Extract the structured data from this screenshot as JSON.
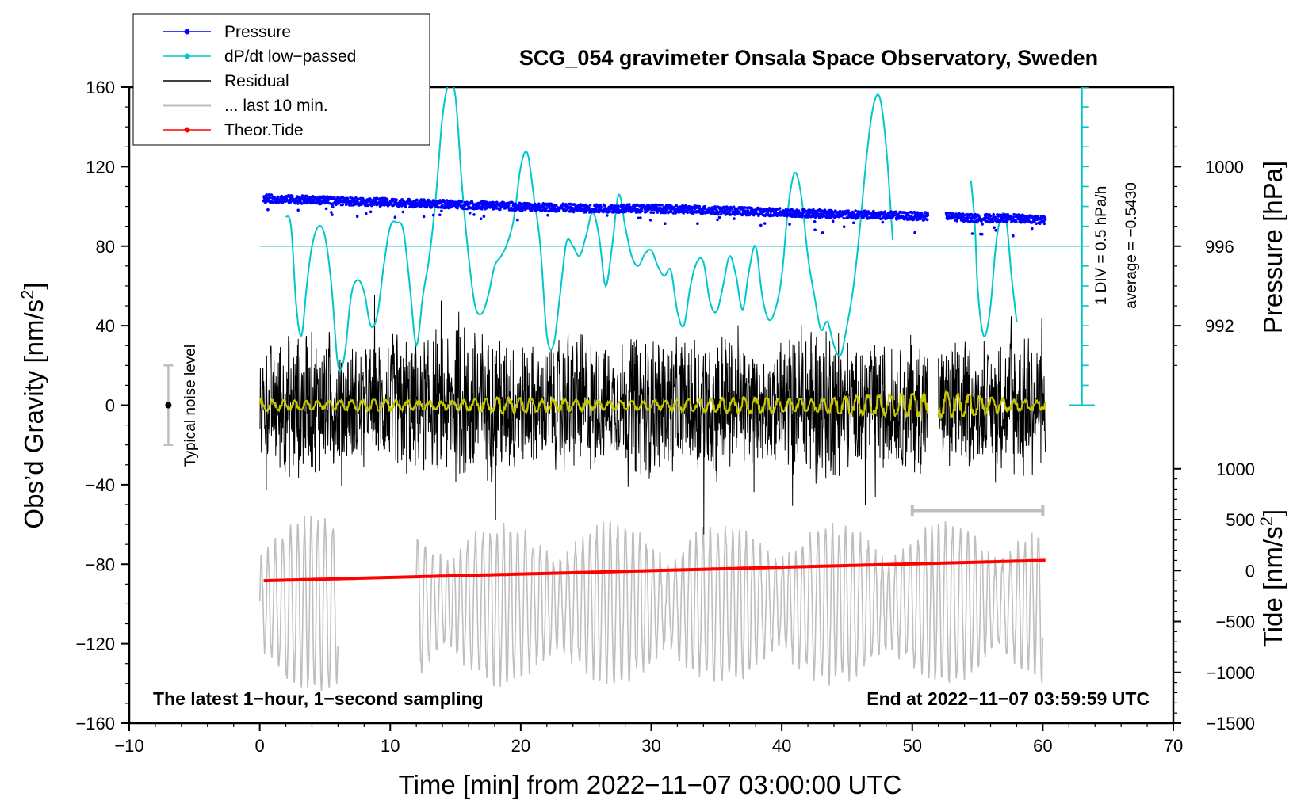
{
  "chart_data": {
    "type": "line",
    "title": "SCG_054 gravimeter Onsala Space Observatory, Sweden",
    "xlabel": "Time [min] from 2022−11−07 03:00:00 UTC",
    "ylabel_main": "Obs’d Gravity [nm/s",
    "ylabel_sup": "2",
    "ylabel_close": "]",
    "ylabel_pressure": "Pressure [hPa]",
    "ylabel_tide_main": "Tide [nm/s",
    "ylabel_tide_sup": "2",
    "ylabel_tide_close": "]",
    "xlim": [
      -10,
      70
    ],
    "ylim": [
      -160,
      160
    ],
    "x_ticks": [
      -10,
      0,
      10,
      20,
      30,
      40,
      50,
      60,
      70
    ],
    "x_tick_labels": [
      "−10",
      "0",
      "10",
      "20",
      "30",
      "40",
      "50",
      "60",
      "70"
    ],
    "y_ticks": [
      160,
      120,
      80,
      40,
      0,
      -40,
      -80,
      -120,
      -160
    ],
    "y_tick_labels": [
      "160",
      "120",
      "80",
      "40",
      "0",
      "−40",
      "−80",
      "−120",
      "−160"
    ],
    "pressure_ticks": [
      1000,
      996,
      992
    ],
    "pressure_tick_labels": [
      "1000",
      "996",
      "992"
    ],
    "pressure_axis": {
      "hpa_at_80": 996,
      "hpa_per_gravity_unit": 0.1
    },
    "tide_ticks": [
      1000,
      500,
      0,
      -500,
      -1000,
      -1500
    ],
    "tide_tick_labels": [
      "1000",
      "500",
      "0",
      "−500",
      "−1000",
      "−1500"
    ],
    "tide_axis": {
      "tide_at_gravity_minus_160": -1500,
      "tide_per_gravity_unit": 19.53
    },
    "notes": {
      "left": "The latest 1−hour, 1−second sampling",
      "right": "End at 2022−11−07 03:59:59 UTC",
      "noise": "Typical noise level",
      "div_scale": "1 DIV = 0.5 hPa/h",
      "average": "average = −0.5430"
    },
    "noise_bar": {
      "x": -7,
      "center": 0,
      "half_range": 20
    },
    "dpdt_zero_level": 80,
    "dpdt_scale_zero": 0,
    "dpdt_scale_top": 160,
    "last10_range": [
      50,
      60
    ],
    "last10_level": -53,
    "legend": [
      {
        "label": "Pressure",
        "color": "#0000ff",
        "style": "line-dot"
      },
      {
        "label": "dP/dt low−passed",
        "color": "#00c8c8",
        "style": "line-dot"
      },
      {
        "label": "Residual",
        "color": "#000000",
        "style": "line"
      },
      {
        "label": "... last 10 min.",
        "color": "#bebebe",
        "style": "thick-line"
      },
      {
        "label": "Theor.Tide",
        "color": "#ff0000",
        "style": "line-dot"
      }
    ],
    "series": [
      {
        "name": "Pressure",
        "color": "#0000ff",
        "unit": "hPa",
        "segments": [
          {
            "x": [
              0.3,
              5,
              10,
              15,
              20,
              25,
              30,
              35,
              40,
              45,
              51.2
            ],
            "y": [
              998.4,
              998.3,
              998.2,
              998.1,
              998.0,
              997.9,
              997.9,
              997.8,
              997.7,
              997.6,
              997.5
            ]
          },
          {
            "x": [
              52.6,
              55,
              58,
              60.2
            ],
            "y": [
              997.5,
              997.4,
              997.4,
              997.3
            ]
          }
        ]
      },
      {
        "name": "dP/dt low−passed",
        "color": "#00c8c8",
        "unit": "nm/s2-plot",
        "segments": [
          {
            "x": [
              2.0,
              2.4,
              2.8,
              3.2,
              3.6,
              4.0,
              4.5,
              5.0,
              5.5,
              6.0,
              6.5,
              7.0,
              7.5,
              8.0,
              8.5,
              9.0,
              9.5,
              10.0,
              10.5,
              11.0,
              11.5,
              12.0,
              12.5,
              13.0,
              13.5,
              14.0,
              14.5,
              15.0,
              15.5,
              16.0,
              16.5,
              17.0,
              17.5,
              18.0,
              18.5,
              19.0,
              19.5,
              20.0,
              20.5,
              21.0,
              21.5,
              22.0,
              22.5,
              23.0,
              23.5,
              24.0,
              24.5,
              25.0,
              25.5,
              26.0,
              26.5,
              27.0,
              27.5,
              28.0,
              28.5,
              29.0,
              29.5,
              30.0,
              30.5,
              31.0,
              31.5,
              32.0,
              32.5,
              33.0,
              33.5,
              34.0,
              34.5,
              35.0,
              35.5,
              36.0,
              36.5,
              37.0,
              37.5,
              38.0,
              38.5,
              39.0,
              39.5,
              40.0,
              40.5,
              41.0,
              41.5,
              42.0,
              42.5,
              43.0,
              43.5,
              44.0,
              44.5,
              45.0,
              45.5,
              46.0,
              46.5,
              47.0,
              47.5,
              48.0,
              48.5
            ],
            "y": [
              95,
              90,
              50,
              35,
              60,
              80,
              90,
              85,
              60,
              20,
              25,
              55,
              63,
              57,
              40,
              45,
              70,
              90,
              92,
              88,
              60,
              30,
              55,
              75,
              105,
              145,
              162,
              155,
              110,
              75,
              50,
              46,
              55,
              70,
              75,
              82,
              95,
              120,
              127,
              105,
              80,
              35,
              30,
              55,
              82,
              80,
              75,
              85,
              97,
              85,
              60,
              80,
              106,
              90,
              75,
              70,
              76,
              78,
              70,
              65,
              68,
              47,
              40,
              60,
              72,
              72,
              52,
              47,
              60,
              75,
              65,
              48,
              68,
              80,
              55,
              43,
              48,
              65,
              100,
              117,
              105,
              75,
              55,
              38,
              42,
              30,
              25,
              40,
              60,
              90,
              125,
              150,
              155,
              130,
              83
            ]
          },
          {
            "x": [
              54.5,
              54.8,
              55.0,
              55.3,
              55.6,
              56.0,
              56.4,
              56.8,
              57.2,
              57.6,
              58.0
            ],
            "y": [
              113,
              90,
              60,
              40,
              35,
              50,
              80,
              95,
              93,
              65,
              42
            ]
          }
        ]
      },
      {
        "name": "Residual",
        "color": "#000000",
        "unit": "nm/s2",
        "note": "approx. 1−second sampling, noisy ±50 nm/s2 envelope",
        "segments": [
          {
            "x_start": 0.0,
            "x_end": 51.2,
            "y_envelope": [
              28,
              40,
              35,
              30,
              38,
              34,
              44,
              36,
              32,
              40,
              30,
              38,
              34,
              42,
              28,
              36,
              44,
              30,
              34,
              38
            ]
          },
          {
            "x_start": 52.0,
            "x_end": 60.2,
            "y_envelope": [
              30,
              38,
              26,
              34,
              40,
              30
            ]
          }
        ]
      },
      {
        "name": "Residual smoothed",
        "color": "#c8c800",
        "unit": "nm/s2",
        "segments": [
          {
            "x_start": 0.0,
            "x_end": 51.2,
            "y_envelope": [
              3,
              2,
              3,
              2,
              4,
              3,
              2,
              3,
              4,
              3,
              5,
              6
            ]
          },
          {
            "x_start": 52.0,
            "x_end": 60.2,
            "y_envelope": [
              7,
              5,
              3,
              2
            ]
          }
        ]
      },
      {
        "name": "... last 10 min.",
        "color": "#bebebe",
        "unit": "nm/s2",
        "segments": [
          {
            "x_start": 0.0,
            "x_end": 6.0,
            "center": -100,
            "amplitude": 35
          },
          {
            "x_start": 12.0,
            "x_end": 60.0,
            "center": -100,
            "amplitude": 32
          }
        ]
      },
      {
        "name": "Theor.Tide",
        "color": "#ff0000",
        "unit": "nm/s2",
        "x": [
          0.3,
          60.2
        ],
        "tide": [
          -100,
          100
        ]
      }
    ]
  }
}
